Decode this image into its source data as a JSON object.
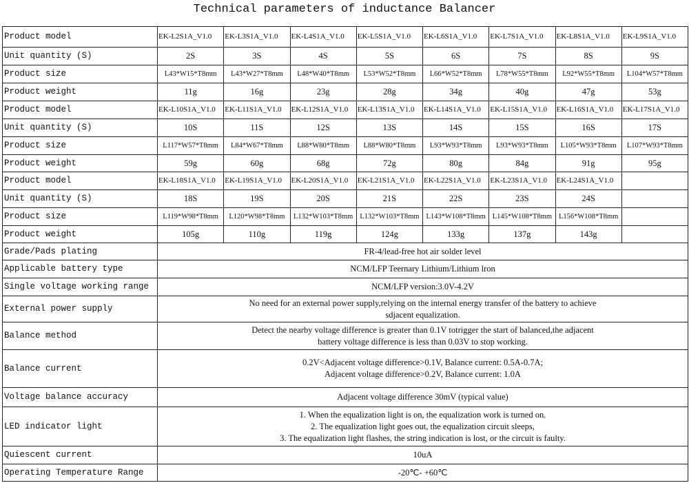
{
  "title": "Technical parameters of inductance Balancer",
  "groups": [
    {
      "models": [
        "EK-L2S1A_V1.0",
        "EK-L3S1A_V1.0",
        "EK-L4S1A_V1.0",
        "EK-L5S1A_V1.0",
        "EK-L6S1A_V1.0",
        "EK-L7S1A_V1.0",
        "EK-L8S1A_V1.0",
        "EK-L9S1A_V1.0"
      ],
      "quantities": [
        "2S",
        "3S",
        "4S",
        "5S",
        "6S",
        "7S",
        "8S",
        "9S"
      ],
      "sizes": [
        "L43*W15*T8mm",
        "L43*W27*T8mm",
        "L48*W40*T8mm",
        "L53*W52*T8mm",
        "L66*W52*T8mm",
        "L78*W55*T8mm",
        "L92*W55*T8mm",
        "L104*W57*T8mm"
      ],
      "weights": [
        "11g",
        "16g",
        "23g",
        "28g",
        "34g",
        "40g",
        "47g",
        "53g"
      ]
    },
    {
      "models": [
        "EK-L10S1A_V1.0",
        "EK-L11S1A_V1.0",
        "EK-L12S1A_V1.0",
        "EK-L13S1A_V1.0",
        "EK-L14S1A_V1.0",
        "EK-L15S1A_V1.0",
        "EK-L16S1A_V1.0",
        "EK-L17S1A_V1.0"
      ],
      "quantities": [
        "10S",
        "11S",
        "12S",
        "13S",
        "14S",
        "15S",
        "16S",
        "17S"
      ],
      "sizes": [
        "L117*W57*T8mm",
        "L84*W67*T8mm",
        "L88*W80*T8mm",
        "L88*W80*T8mm",
        "L93*W93*T8mm",
        "L93*W93*T8mm",
        "L105*W93*T8mm",
        "L107*W93*T8mm"
      ],
      "weights": [
        "59g",
        "60g",
        "68g",
        "72g",
        "80g",
        "84g",
        "91g",
        "95g"
      ]
    },
    {
      "models": [
        "EK-L18S1A_V1.0",
        "EK-L19S1A_V1.0",
        "EK-L20S1A_V1.0",
        "EK-L21S1A_V1.0",
        "EK-L22S1A_V1.0",
        "EK-L23S1A_V1.0",
        "EK-L24S1A_V1.0",
        ""
      ],
      "quantities": [
        "18S",
        "19S",
        "20S",
        "21S",
        "22S",
        "23S",
        "24S",
        ""
      ],
      "sizes": [
        "L119*W98*T8mm",
        "L120*W98*T8mm",
        "L132*W103*T8mm",
        "L132*W103*T8mm",
        "L143*W108*T8mm",
        "L145*W108*T8mm",
        "L156*W108*T8mm",
        ""
      ],
      "weights": [
        "105g",
        "110g",
        "119g",
        "124g",
        "133g",
        "137g",
        "143g",
        ""
      ]
    }
  ],
  "row_labels": {
    "model": "Product model",
    "quantity": "Unit quantity (S)",
    "size": "Product size",
    "weight": "Product weight"
  },
  "specs": [
    {
      "label": "Grade/Pads plating",
      "lines": [
        "FR-4/lead-free hot air solder level"
      ]
    },
    {
      "label": "Applicable battery type",
      "lines": [
        "NCM/LFP Teernary Lithium/Lithium lron"
      ]
    },
    {
      "label": "Single voltage working range",
      "lines": [
        "NCM/LFP version:3.0V-4.2V"
      ]
    },
    {
      "label": "External power supply",
      "lines": [
        "No need for an external power supply,relying on the internal energy transfer of the battery to achieve",
        "sdjacent equalization."
      ]
    },
    {
      "label": "Balance method",
      "lines": [
        "Detect the nearby voltage difference is greater than 0.1V totrigger the start of balanced,the adjacent",
        "battery voltage difference is less than 0.03V to stop working."
      ]
    },
    {
      "label": "Balance current",
      "lines": [
        "0.2V<Adjacent voltage difference>0.1V, Balance current: 0.5A-0.7A;",
        "Adjacent voltage difference>0.2V, Balance current: 1.0A"
      ]
    },
    {
      "label": "Voltage balance accuracy",
      "lines": [
        "Adjacent voltage difference 30mV (typical value)"
      ]
    },
    {
      "label": "LED indicator light",
      "lines": [
        "1. When the equalization light is on, the equalization work is turned on.",
        "2. The equalization light goes out, the equalization circuit sleeps,",
        "3. The equalization light flashes, the string indication is lost, or the circuit is faulty."
      ]
    },
    {
      "label": "Quiescent current",
      "lines": [
        "10uA"
      ]
    },
    {
      "label": "Operating Temperature Range",
      "lines": [
        "-20℃- +60℃"
      ]
    }
  ]
}
